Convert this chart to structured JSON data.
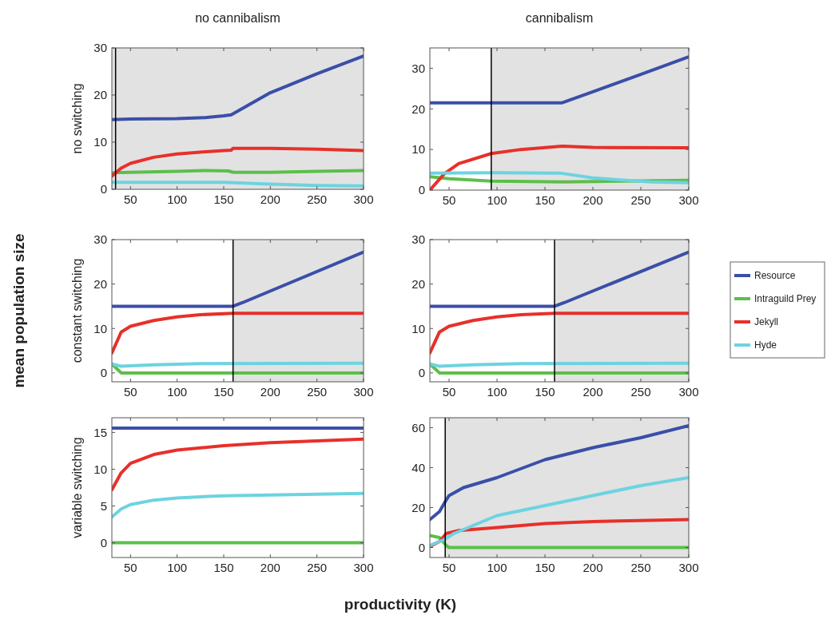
{
  "chart_data": [
    {
      "type": "line",
      "title": "no cannibalism",
      "ylabel": "no switching",
      "xlim": [
        30,
        300
      ],
      "xticks": [
        50,
        100,
        150,
        200,
        250,
        300
      ],
      "ylim": [
        0,
        30
      ],
      "yticks": [
        0,
        10,
        20,
        30
      ],
      "grid": false,
      "legend": false,
      "bands": [
        {
          "axis": "x",
          "from": 30,
          "to": 300,
          "color": "#e2e2e2"
        }
      ],
      "ref_lines": [
        {
          "axis": "x",
          "value": 34,
          "color": "#000000"
        }
      ],
      "series": [
        {
          "color": "#3a4fa8",
          "x": [
            30,
            50,
            100,
            130,
            150,
            158,
            200,
            250,
            300
          ],
          "values": [
            14.8,
            14.9,
            15,
            15.2,
            15.6,
            15.8,
            20.5,
            24.5,
            28.3
          ]
        },
        {
          "color": "#5cbf4a",
          "x": [
            30,
            100,
            130,
            155,
            160,
            200,
            250,
            300
          ],
          "values": [
            3.5,
            3.8,
            4,
            3.9,
            3.6,
            3.6,
            3.8,
            4
          ]
        },
        {
          "color": "#e8302a",
          "x": [
            30,
            40,
            50,
            75,
            100,
            125,
            150,
            158,
            160,
            200,
            250,
            300
          ],
          "values": [
            2.8,
            4.5,
            5.5,
            6.8,
            7.5,
            7.9,
            8.2,
            8.3,
            8.7,
            8.7,
            8.5,
            8.2
          ]
        },
        {
          "color": "#6dd3e0",
          "x": [
            30,
            150,
            200,
            250,
            300
          ],
          "values": [
            1.5,
            1.5,
            1.1,
            0.8,
            0.7
          ]
        }
      ]
    },
    {
      "type": "line",
      "title": "cannibalism",
      "xlim": [
        30,
        300
      ],
      "xticks": [
        50,
        100,
        150,
        200,
        250,
        300
      ],
      "ylim": [
        0,
        35
      ],
      "yticks": [
        0,
        10,
        20,
        30
      ],
      "grid": false,
      "legend": false,
      "bands": [
        {
          "axis": "x",
          "from": 94,
          "to": 300,
          "color": "#e2e2e2"
        }
      ],
      "ref_lines": [
        {
          "axis": "x",
          "value": 94,
          "color": "#000000"
        }
      ],
      "series": [
        {
          "color": "#3a4fa8",
          "x": [
            30,
            100,
            168,
            200,
            250,
            300
          ],
          "values": [
            21.5,
            21.5,
            21.5,
            24.2,
            28.5,
            32.8
          ]
        },
        {
          "color": "#5cbf4a",
          "x": [
            30,
            50,
            94,
            170,
            250,
            300
          ],
          "values": [
            3.3,
            2.8,
            2.2,
            2,
            null,
            2.4
          ]
        },
        {
          "color": "#e8302a",
          "x": [
            30,
            45,
            60,
            94,
            125,
            168,
            200,
            300
          ],
          "values": [
            0,
            4,
            6.5,
            9,
            10,
            10.8,
            10.5,
            10.4
          ]
        },
        {
          "color": "#6dd3e0",
          "x": [
            30,
            100,
            165,
            200,
            260,
            300
          ],
          "values": [
            4.2,
            4.3,
            4.2,
            3,
            2,
            1.8
          ]
        }
      ]
    },
    {
      "type": "line",
      "ylabel": "constant switching",
      "annotations": [
        "mean population size"
      ],
      "xlim": [
        30,
        300
      ],
      "xticks": [
        50,
        100,
        150,
        200,
        250,
        300
      ],
      "ylim": [
        -2,
        30
      ],
      "yticks": [
        0,
        10,
        20,
        30
      ],
      "grid": false,
      "legend": false,
      "bands": [
        {
          "axis": "x",
          "from": 160,
          "to": 300,
          "color": "#e2e2e2"
        }
      ],
      "ref_lines": [
        {
          "axis": "x",
          "value": 160,
          "color": "#000000"
        }
      ],
      "series": [
        {
          "color": "#3a4fa8",
          "x": [
            30,
            160,
            170,
            300
          ],
          "values": [
            15,
            15,
            15.8,
            27.2
          ]
        },
        {
          "color": "#5cbf4a",
          "x": [
            30,
            35,
            40,
            300
          ],
          "values": [
            2,
            1,
            0,
            0
          ]
        },
        {
          "color": "#e8302a",
          "x": [
            30,
            40,
            50,
            75,
            100,
            125,
            160,
            300
          ],
          "values": [
            4.5,
            9.2,
            10.5,
            11.8,
            12.6,
            13.1,
            13.4,
            13.4
          ]
        },
        {
          "color": "#6dd3e0",
          "x": [
            30,
            40,
            75,
            125,
            300
          ],
          "values": [
            2,
            1.5,
            1.8,
            2.1,
            2.2
          ]
        }
      ]
    },
    {
      "type": "line",
      "xlim": [
        30,
        300
      ],
      "xticks": [
        50,
        100,
        150,
        200,
        250,
        300
      ],
      "ylim": [
        -2,
        30
      ],
      "yticks": [
        0,
        10,
        20,
        30
      ],
      "grid": false,
      "legend": "right",
      "bands": [
        {
          "axis": "x",
          "from": 160,
          "to": 300,
          "color": "#e2e2e2"
        }
      ],
      "ref_lines": [
        {
          "axis": "x",
          "value": 160,
          "color": "#000000"
        }
      ],
      "series": [
        {
          "name": "Resource",
          "color": "#3a4fa8",
          "x": [
            30,
            160,
            170,
            300
          ],
          "values": [
            15,
            15,
            15.8,
            27.2
          ]
        },
        {
          "name": "Intraguild Prey",
          "color": "#5cbf4a",
          "x": [
            30,
            35,
            40,
            300
          ],
          "values": [
            2,
            1,
            0,
            0
          ]
        },
        {
          "name": "Jekyll",
          "color": "#e8302a",
          "x": [
            30,
            40,
            50,
            75,
            100,
            125,
            160,
            300
          ],
          "values": [
            4.5,
            9.2,
            10.5,
            11.8,
            12.6,
            13.1,
            13.4,
            13.4
          ]
        },
        {
          "name": "Hyde",
          "color": "#6dd3e0",
          "x": [
            30,
            40,
            75,
            125,
            300
          ],
          "values": [
            2,
            1.5,
            1.8,
            2.1,
            2.2
          ]
        }
      ]
    },
    {
      "type": "line",
      "ylabel": "variable switching",
      "xlabel": "productivity (K)",
      "xlim": [
        30,
        300
      ],
      "xticks": [
        50,
        100,
        150,
        200,
        250,
        300
      ],
      "ylim": [
        -2,
        17
      ],
      "yticks": [
        0,
        5,
        10,
        15
      ],
      "grid": false,
      "legend": false,
      "series": [
        {
          "color": "#3a4fa8",
          "x": [
            30,
            300
          ],
          "values": [
            15.6,
            15.6
          ]
        },
        {
          "color": "#5cbf4a",
          "x": [
            30,
            300
          ],
          "values": [
            0,
            0
          ]
        },
        {
          "color": "#e8302a",
          "x": [
            30,
            40,
            50,
            75,
            100,
            150,
            200,
            300
          ],
          "values": [
            7.2,
            9.5,
            10.8,
            12,
            12.6,
            13.2,
            13.6,
            14.1
          ]
        },
        {
          "color": "#6dd3e0",
          "x": [
            30,
            40,
            50,
            75,
            100,
            150,
            200,
            300
          ],
          "values": [
            3.5,
            4.6,
            5.2,
            5.8,
            6.1,
            6.4,
            6.5,
            6.7
          ]
        }
      ]
    },
    {
      "type": "line",
      "xlim": [
        30,
        300
      ],
      "xticks": [
        50,
        100,
        150,
        200,
        250,
        300
      ],
      "ylim": [
        -5,
        65
      ],
      "yticks": [
        0,
        20,
        40,
        60
      ],
      "grid": false,
      "legend": false,
      "bands": [
        {
          "axis": "x",
          "from": 46,
          "to": 300,
          "color": "#e2e2e2"
        }
      ],
      "ref_lines": [
        {
          "axis": "x",
          "value": 46,
          "color": "#000000"
        }
      ],
      "series": [
        {
          "color": "#3a4fa8",
          "x": [
            30,
            40,
            46,
            50,
            65,
            100,
            150,
            200,
            250,
            300
          ],
          "values": [
            14,
            18,
            23,
            26,
            30,
            35,
            44,
            50,
            55,
            61
          ]
        },
        {
          "color": "#5cbf4a",
          "x": [
            30,
            40,
            47,
            50,
            300
          ],
          "values": [
            6,
            5,
            1,
            0,
            0
          ]
        },
        {
          "color": "#e8302a",
          "x": [
            30,
            40,
            47,
            60,
            100,
            150,
            200,
            300
          ],
          "values": [
            0.5,
            3,
            7,
            8.5,
            10,
            12,
            13,
            14
          ]
        },
        {
          "color": "#6dd3e0",
          "x": [
            30,
            45,
            55,
            75,
            100,
            150,
            200,
            250,
            300
          ],
          "values": [
            1,
            4,
            7,
            11,
            16,
            21,
            26,
            31,
            35
          ]
        }
      ]
    }
  ]
}
